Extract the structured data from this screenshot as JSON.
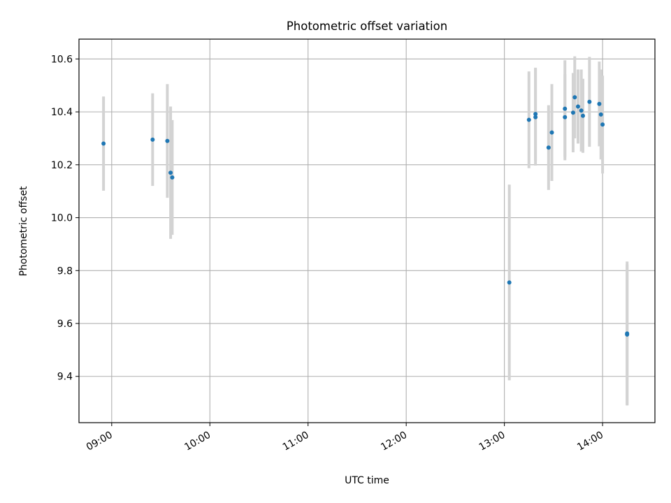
{
  "chart_data": {
    "type": "scatter",
    "title": "Photometric offset variation",
    "xlabel": "UTC time",
    "ylabel": "Photometric offset",
    "xlim": [
      "08:40",
      "14:32"
    ],
    "ylim": [
      9.225,
      10.675
    ],
    "grid": true,
    "x_ticks": [
      "09:00",
      "10:00",
      "11:00",
      "12:00",
      "13:00",
      "14:00"
    ],
    "y_ticks": [
      "9.4",
      "9.6",
      "9.8",
      "10.0",
      "10.2",
      "10.4",
      "10.6"
    ],
    "colors": {
      "point": "#1f77b4",
      "errorbar": "#d3d3d3",
      "grid": "#b0b0b0"
    },
    "series": [
      {
        "points": [
          {
            "x": "08:55",
            "y": 10.28,
            "err": 0.178
          },
          {
            "x": "09:25",
            "y": 10.295,
            "err": 0.175
          },
          {
            "x": "09:34",
            "y": 10.29,
            "err": 0.215
          },
          {
            "x": "09:36",
            "y": 10.17,
            "err": 0.25
          },
          {
            "x": "09:37",
            "y": 10.152,
            "err": 0.217
          },
          {
            "x": "13:03",
            "y": 9.755,
            "err": 0.37
          },
          {
            "x": "13:15",
            "y": 10.37,
            "err": 0.183
          },
          {
            "x": "13:19",
            "y": 10.392,
            "err": 0.175
          },
          {
            "x": "13:19",
            "y": 10.38,
            "err": 0.183
          },
          {
            "x": "13:27",
            "y": 10.265,
            "err": 0.16
          },
          {
            "x": "13:29",
            "y": 10.322,
            "err": 0.183
          },
          {
            "x": "13:37",
            "y": 10.38,
            "err": 0.163
          },
          {
            "x": "13:37",
            "y": 10.412,
            "err": 0.183
          },
          {
            "x": "13:42",
            "y": 10.397,
            "err": 0.15
          },
          {
            "x": "13:43",
            "y": 10.455,
            "err": 0.155
          },
          {
            "x": "13:45",
            "y": 10.42,
            "err": 0.14
          },
          {
            "x": "13:47",
            "y": 10.405,
            "err": 0.155
          },
          {
            "x": "13:48",
            "y": 10.385,
            "err": 0.14
          },
          {
            "x": "13:52",
            "y": 10.438,
            "err": 0.17
          },
          {
            "x": "13:58",
            "y": 10.43,
            "err": 0.16
          },
          {
            "x": "13:59",
            "y": 10.39,
            "err": 0.17
          },
          {
            "x": "14:00",
            "y": 10.352,
            "err": 0.185
          },
          {
            "x": "14:15",
            "y": 9.562,
            "err": 0.272
          },
          {
            "x": "14:15",
            "y": 9.558,
            "err": 0.265
          }
        ]
      }
    ]
  }
}
